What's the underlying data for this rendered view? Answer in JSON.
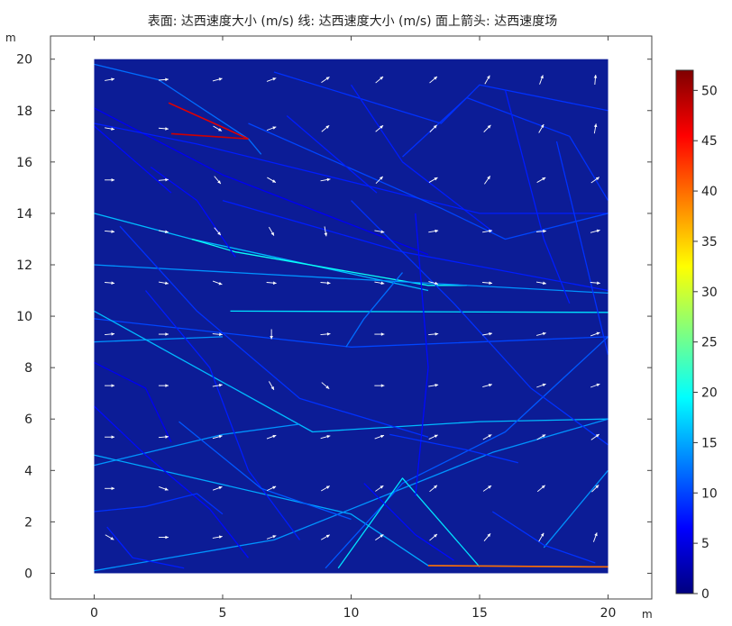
{
  "chart_data": {
    "type": "surface-line-arrow",
    "title": "表面: 达西速度大小 (m/s)  线: 达西速度大小 (m/s)  面上箭头: 达西速度场",
    "xunit": "m",
    "yunit": "m",
    "xlim": [
      -1.7,
      21.7
    ],
    "ylim": [
      -1.0,
      20.9
    ],
    "domain": {
      "x": [
        0,
        20
      ],
      "y": [
        0,
        20
      ]
    },
    "xticks": [
      0,
      5,
      10,
      15,
      20
    ],
    "yticks": [
      0,
      2,
      4,
      6,
      8,
      10,
      12,
      14,
      16,
      18,
      20
    ],
    "background_color": "#0c1c96",
    "colorbar": {
      "min": 0,
      "max": 52,
      "ticks": [
        0,
        5,
        10,
        15,
        20,
        25,
        30,
        35,
        40,
        45,
        50
      ],
      "colormap": "rainbow-jet"
    },
    "fractures": [
      {
        "pts": [
          [
            0,
            19.8
          ],
          [
            2.5,
            19.2
          ],
          [
            6,
            16.9
          ],
          [
            6.5,
            16.3
          ]
        ],
        "v": 12
      },
      {
        "pts": [
          [
            3,
            17.1
          ],
          [
            6,
            16.9
          ]
        ],
        "v": 48
      },
      {
        "pts": [
          [
            2.9,
            18.3
          ],
          [
            6,
            16.9
          ]
        ],
        "v": 47
      },
      {
        "pts": [
          [
            0,
            18.1
          ],
          [
            5,
            15.5
          ],
          [
            13,
            12.4
          ]
        ],
        "v": 6
      },
      {
        "pts": [
          [
            0,
            17.5
          ],
          [
            4,
            16.7
          ],
          [
            15,
            14
          ],
          [
            20,
            14
          ]
        ],
        "v": 8
      },
      {
        "pts": [
          [
            0,
            17.4
          ],
          [
            3,
            14.8
          ]
        ],
        "v": 7
      },
      {
        "pts": [
          [
            0,
            14
          ],
          [
            3.8,
            13
          ],
          [
            13,
            11
          ]
        ],
        "v": 16
      },
      {
        "pts": [
          [
            3.8,
            13
          ],
          [
            5.5,
            12.5
          ],
          [
            13,
            11.2
          ],
          [
            14.5,
            11.2
          ]
        ],
        "v": 20
      },
      {
        "pts": [
          [
            0,
            12
          ],
          [
            20,
            10.9
          ]
        ],
        "v": 14
      },
      {
        "pts": [
          [
            5.3,
            10.2
          ],
          [
            20,
            10.15
          ]
        ],
        "v": 18
      },
      {
        "pts": [
          [
            0,
            9
          ],
          [
            5,
            9.2
          ]
        ],
        "v": 14
      },
      {
        "pts": [
          [
            0,
            9.9
          ],
          [
            10,
            8.8
          ],
          [
            20,
            9.2
          ]
        ],
        "v": 10
      },
      {
        "pts": [
          [
            0,
            10.2
          ],
          [
            8.5,
            5.5
          ],
          [
            15,
            5.9
          ],
          [
            20,
            6
          ]
        ],
        "v": 16
      },
      {
        "pts": [
          [
            0,
            4.2
          ],
          [
            5,
            5.4
          ],
          [
            8,
            5.8
          ]
        ],
        "v": 14
      },
      {
        "pts": [
          [
            0,
            4.6
          ],
          [
            10,
            2.3
          ],
          [
            13,
            0.3
          ],
          [
            20,
            0.25
          ]
        ],
        "v": 15
      },
      {
        "pts": [
          [
            0,
            0.1
          ],
          [
            7,
            1.3
          ],
          [
            15.5,
            4.7
          ],
          [
            20,
            6
          ]
        ],
        "v": 14
      },
      {
        "pts": [
          [
            9,
            0.2
          ],
          [
            12,
            3.5
          ],
          [
            16,
            5.5
          ],
          [
            20,
            9.2
          ]
        ],
        "v": 11
      },
      {
        "pts": [
          [
            9.5,
            0.2
          ],
          [
            12,
            3.7
          ],
          [
            15,
            0.25
          ]
        ],
        "v": 18
      },
      {
        "pts": [
          [
            13,
            0.3
          ],
          [
            19.3,
            0.25
          ],
          [
            20,
            0.25
          ]
        ],
        "v": 40
      },
      {
        "pts": [
          [
            17.5,
            1
          ],
          [
            20,
            4
          ]
        ],
        "v": 14
      },
      {
        "pts": [
          [
            7,
            19.5
          ],
          [
            13.5,
            17.5
          ],
          [
            15,
            19
          ],
          [
            20,
            18
          ]
        ],
        "v": 9
      },
      {
        "pts": [
          [
            10,
            19
          ],
          [
            12,
            16
          ],
          [
            15.5,
            13.3
          ]
        ],
        "v": 8
      },
      {
        "pts": [
          [
            12,
            16.2
          ],
          [
            14.5,
            18.5
          ],
          [
            18.5,
            17
          ],
          [
            20,
            14.5
          ]
        ],
        "v": 9
      },
      {
        "pts": [
          [
            6,
            17.5
          ],
          [
            13.5,
            14.2
          ],
          [
            16,
            13
          ],
          [
            20,
            14
          ]
        ],
        "v": 10
      },
      {
        "pts": [
          [
            5,
            14.5
          ],
          [
            12,
            12.5
          ],
          [
            20,
            11
          ]
        ],
        "v": 8
      },
      {
        "pts": [
          [
            1,
            13.5
          ],
          [
            4,
            10.2
          ],
          [
            8,
            6.8
          ],
          [
            13,
            5.3
          ]
        ],
        "v": 9
      },
      {
        "pts": [
          [
            2,
            11
          ],
          [
            4.5,
            8
          ],
          [
            6,
            4
          ],
          [
            8,
            1.3
          ]
        ],
        "v": 8
      },
      {
        "pts": [
          [
            10,
            14.5
          ],
          [
            14,
            10.5
          ],
          [
            17,
            7.2
          ],
          [
            20,
            5
          ]
        ],
        "v": 9
      },
      {
        "pts": [
          [
            12.5,
            14
          ],
          [
            13,
            8
          ],
          [
            12.5,
            3
          ]
        ],
        "v": 7
      },
      {
        "pts": [
          [
            16,
            18.8
          ],
          [
            17.5,
            13
          ],
          [
            18.5,
            10.5
          ]
        ],
        "v": 8
      },
      {
        "pts": [
          [
            18,
            16.8
          ],
          [
            18.8,
            13.5
          ],
          [
            20,
            8.5
          ]
        ],
        "v": 9
      },
      {
        "pts": [
          [
            0,
            6.5
          ],
          [
            2,
            4.6
          ],
          [
            4.5,
            2.5
          ],
          [
            6,
            0.6
          ]
        ],
        "v": 7
      },
      {
        "pts": [
          [
            0,
            2.4
          ],
          [
            2,
            2.6
          ],
          [
            4,
            3.1
          ],
          [
            5,
            2.3
          ]
        ],
        "v": 9
      },
      {
        "pts": [
          [
            0,
            8.2
          ],
          [
            2,
            7.2
          ],
          [
            3,
            5.1
          ]
        ],
        "v": 6
      },
      {
        "pts": [
          [
            0.5,
            1.8
          ],
          [
            1.5,
            0.6
          ],
          [
            3.5,
            0.2
          ]
        ],
        "v": 8
      },
      {
        "pts": [
          [
            3.3,
            5.9
          ],
          [
            6.5,
            3.3
          ],
          [
            10,
            2.1
          ]
        ],
        "v": 11
      },
      {
        "pts": [
          [
            9.8,
            8.8
          ],
          [
            10.5,
            9.9
          ],
          [
            12,
            11.7
          ]
        ],
        "v": 12
      },
      {
        "pts": [
          [
            7.5,
            17.8
          ],
          [
            11,
            14.8
          ]
        ],
        "v": 8
      },
      {
        "pts": [
          [
            15.5,
            2.4
          ],
          [
            17.5,
            1.1
          ],
          [
            19.5,
            0.4
          ]
        ],
        "v": 9
      },
      {
        "pts": [
          [
            10.5,
            3.5
          ],
          [
            12.5,
            1.5
          ],
          [
            14,
            0.5
          ]
        ],
        "v": 7
      },
      {
        "pts": [
          [
            11.5,
            5.4
          ],
          [
            14.5,
            4.8
          ],
          [
            16.5,
            4.3
          ]
        ],
        "v": 9
      },
      {
        "pts": [
          [
            2.2,
            15.8
          ],
          [
            4,
            14.5
          ],
          [
            5.5,
            12.3
          ]
        ],
        "v": 7
      }
    ],
    "arrows": [
      {
        "x": 0.6,
        "y": 19.2,
        "dir": 10
      },
      {
        "x": 2.7,
        "y": 19.2,
        "dir": 5
      },
      {
        "x": 4.8,
        "y": 19.2,
        "dir": 15
      },
      {
        "x": 6.9,
        "y": 19.2,
        "dir": 20
      },
      {
        "x": 9.0,
        "y": 19.2,
        "dir": 35
      },
      {
        "x": 11.1,
        "y": 19.2,
        "dir": 40
      },
      {
        "x": 13.2,
        "y": 19.2,
        "dir": 40
      },
      {
        "x": 15.3,
        "y": 19.2,
        "dir": 60
      },
      {
        "x": 17.4,
        "y": 19.2,
        "dir": 70
      },
      {
        "x": 19.5,
        "y": 19.2,
        "dir": 85
      },
      {
        "x": 0.6,
        "y": 17.3,
        "dir": -10
      },
      {
        "x": 2.7,
        "y": 17.3,
        "dir": -5
      },
      {
        "x": 4.8,
        "y": 17.3,
        "dir": -30
      },
      {
        "x": 6.9,
        "y": 17.3,
        "dir": 20
      },
      {
        "x": 9.0,
        "y": 17.3,
        "dir": 40
      },
      {
        "x": 11.1,
        "y": 17.3,
        "dir": 40
      },
      {
        "x": 13.2,
        "y": 17.3,
        "dir": 45
      },
      {
        "x": 15.3,
        "y": 17.3,
        "dir": 45
      },
      {
        "x": 17.4,
        "y": 17.3,
        "dir": 60
      },
      {
        "x": 19.5,
        "y": 17.3,
        "dir": 80
      },
      {
        "x": 0.6,
        "y": 15.3,
        "dir": 0
      },
      {
        "x": 2.7,
        "y": 15.3,
        "dir": 5
      },
      {
        "x": 4.8,
        "y": 15.3,
        "dir": -50
      },
      {
        "x": 6.9,
        "y": 15.3,
        "dir": -30
      },
      {
        "x": 9.0,
        "y": 15.3,
        "dir": 10
      },
      {
        "x": 11.1,
        "y": 15.3,
        "dir": 45
      },
      {
        "x": 13.2,
        "y": 15.3,
        "dir": 30
      },
      {
        "x": 15.3,
        "y": 15.3,
        "dir": 55
      },
      {
        "x": 17.4,
        "y": 15.3,
        "dir": 30
      },
      {
        "x": 19.5,
        "y": 15.3,
        "dir": 35
      },
      {
        "x": 0.6,
        "y": 13.3,
        "dir": -5
      },
      {
        "x": 2.7,
        "y": 13.3,
        "dir": -10
      },
      {
        "x": 4.8,
        "y": 13.3,
        "dir": -50
      },
      {
        "x": 6.9,
        "y": 13.3,
        "dir": -60
      },
      {
        "x": 9.0,
        "y": 13.3,
        "dir": -80
      },
      {
        "x": 11.1,
        "y": 13.3,
        "dir": -10
      },
      {
        "x": 13.2,
        "y": 13.3,
        "dir": 10
      },
      {
        "x": 15.3,
        "y": 13.3,
        "dir": 10
      },
      {
        "x": 17.4,
        "y": 13.3,
        "dir": 5
      },
      {
        "x": 19.5,
        "y": 13.3,
        "dir": 15
      },
      {
        "x": 0.6,
        "y": 11.3,
        "dir": -5
      },
      {
        "x": 2.7,
        "y": 11.3,
        "dir": -10
      },
      {
        "x": 4.8,
        "y": 11.3,
        "dir": -20
      },
      {
        "x": 6.9,
        "y": 11.3,
        "dir": -5
      },
      {
        "x": 9.0,
        "y": 11.3,
        "dir": -5
      },
      {
        "x": 11.1,
        "y": 11.3,
        "dir": -10
      },
      {
        "x": 13.2,
        "y": 11.3,
        "dir": -15
      },
      {
        "x": 15.3,
        "y": 11.3,
        "dir": -5
      },
      {
        "x": 17.4,
        "y": 11.3,
        "dir": -10
      },
      {
        "x": 19.5,
        "y": 11.3,
        "dir": -5
      },
      {
        "x": 0.6,
        "y": 9.3,
        "dir": 5
      },
      {
        "x": 2.7,
        "y": 9.3,
        "dir": 0
      },
      {
        "x": 4.8,
        "y": 9.3,
        "dir": -5
      },
      {
        "x": 6.9,
        "y": 9.3,
        "dir": -90
      },
      {
        "x": 9.0,
        "y": 9.3,
        "dir": 5
      },
      {
        "x": 11.1,
        "y": 9.3,
        "dir": 0
      },
      {
        "x": 13.2,
        "y": 9.3,
        "dir": 5
      },
      {
        "x": 15.3,
        "y": 9.3,
        "dir": 10
      },
      {
        "x": 17.4,
        "y": 9.3,
        "dir": 15
      },
      {
        "x": 19.5,
        "y": 9.3,
        "dir": 20
      },
      {
        "x": 0.6,
        "y": 7.3,
        "dir": 0
      },
      {
        "x": 2.7,
        "y": 7.3,
        "dir": 0
      },
      {
        "x": 4.8,
        "y": 7.3,
        "dir": 10
      },
      {
        "x": 6.9,
        "y": 7.3,
        "dir": -60
      },
      {
        "x": 9.0,
        "y": 7.3,
        "dir": -40
      },
      {
        "x": 11.1,
        "y": 7.3,
        "dir": 0
      },
      {
        "x": 13.2,
        "y": 7.3,
        "dir": 10
      },
      {
        "x": 15.3,
        "y": 7.3,
        "dir": 15
      },
      {
        "x": 17.4,
        "y": 7.3,
        "dir": 20
      },
      {
        "x": 19.5,
        "y": 7.3,
        "dir": 20
      },
      {
        "x": 0.6,
        "y": 5.3,
        "dir": 0
      },
      {
        "x": 2.7,
        "y": 5.3,
        "dir": 5
      },
      {
        "x": 4.8,
        "y": 5.3,
        "dir": 15
      },
      {
        "x": 6.9,
        "y": 5.3,
        "dir": 20
      },
      {
        "x": 9.0,
        "y": 5.3,
        "dir": 15
      },
      {
        "x": 11.1,
        "y": 5.3,
        "dir": 20
      },
      {
        "x": 13.2,
        "y": 5.3,
        "dir": 25
      },
      {
        "x": 15.3,
        "y": 5.3,
        "dir": 30
      },
      {
        "x": 17.4,
        "y": 5.3,
        "dir": 30
      },
      {
        "x": 19.5,
        "y": 5.3,
        "dir": 35
      },
      {
        "x": 0.6,
        "y": 3.3,
        "dir": 0
      },
      {
        "x": 2.7,
        "y": 3.3,
        "dir": -20
      },
      {
        "x": 4.8,
        "y": 3.3,
        "dir": 20
      },
      {
        "x": 6.9,
        "y": 3.3,
        "dir": 25
      },
      {
        "x": 9.0,
        "y": 3.3,
        "dir": 30
      },
      {
        "x": 11.1,
        "y": 3.3,
        "dir": 35
      },
      {
        "x": 13.2,
        "y": 3.3,
        "dir": 40
      },
      {
        "x": 15.3,
        "y": 3.3,
        "dir": 35
      },
      {
        "x": 17.4,
        "y": 3.3,
        "dir": 40
      },
      {
        "x": 19.5,
        "y": 3.3,
        "dir": 45
      },
      {
        "x": 0.6,
        "y": 1.4,
        "dir": -30
      },
      {
        "x": 2.7,
        "y": 1.4,
        "dir": 0
      },
      {
        "x": 4.8,
        "y": 1.4,
        "dir": 10
      },
      {
        "x": 6.9,
        "y": 1.4,
        "dir": 20
      },
      {
        "x": 9.0,
        "y": 1.4,
        "dir": 30
      },
      {
        "x": 11.1,
        "y": 1.4,
        "dir": 35
      },
      {
        "x": 13.2,
        "y": 1.4,
        "dir": 40
      },
      {
        "x": 15.3,
        "y": 1.4,
        "dir": 50
      },
      {
        "x": 17.4,
        "y": 1.4,
        "dir": 60
      },
      {
        "x": 19.5,
        "y": 1.4,
        "dir": 70
      }
    ]
  }
}
